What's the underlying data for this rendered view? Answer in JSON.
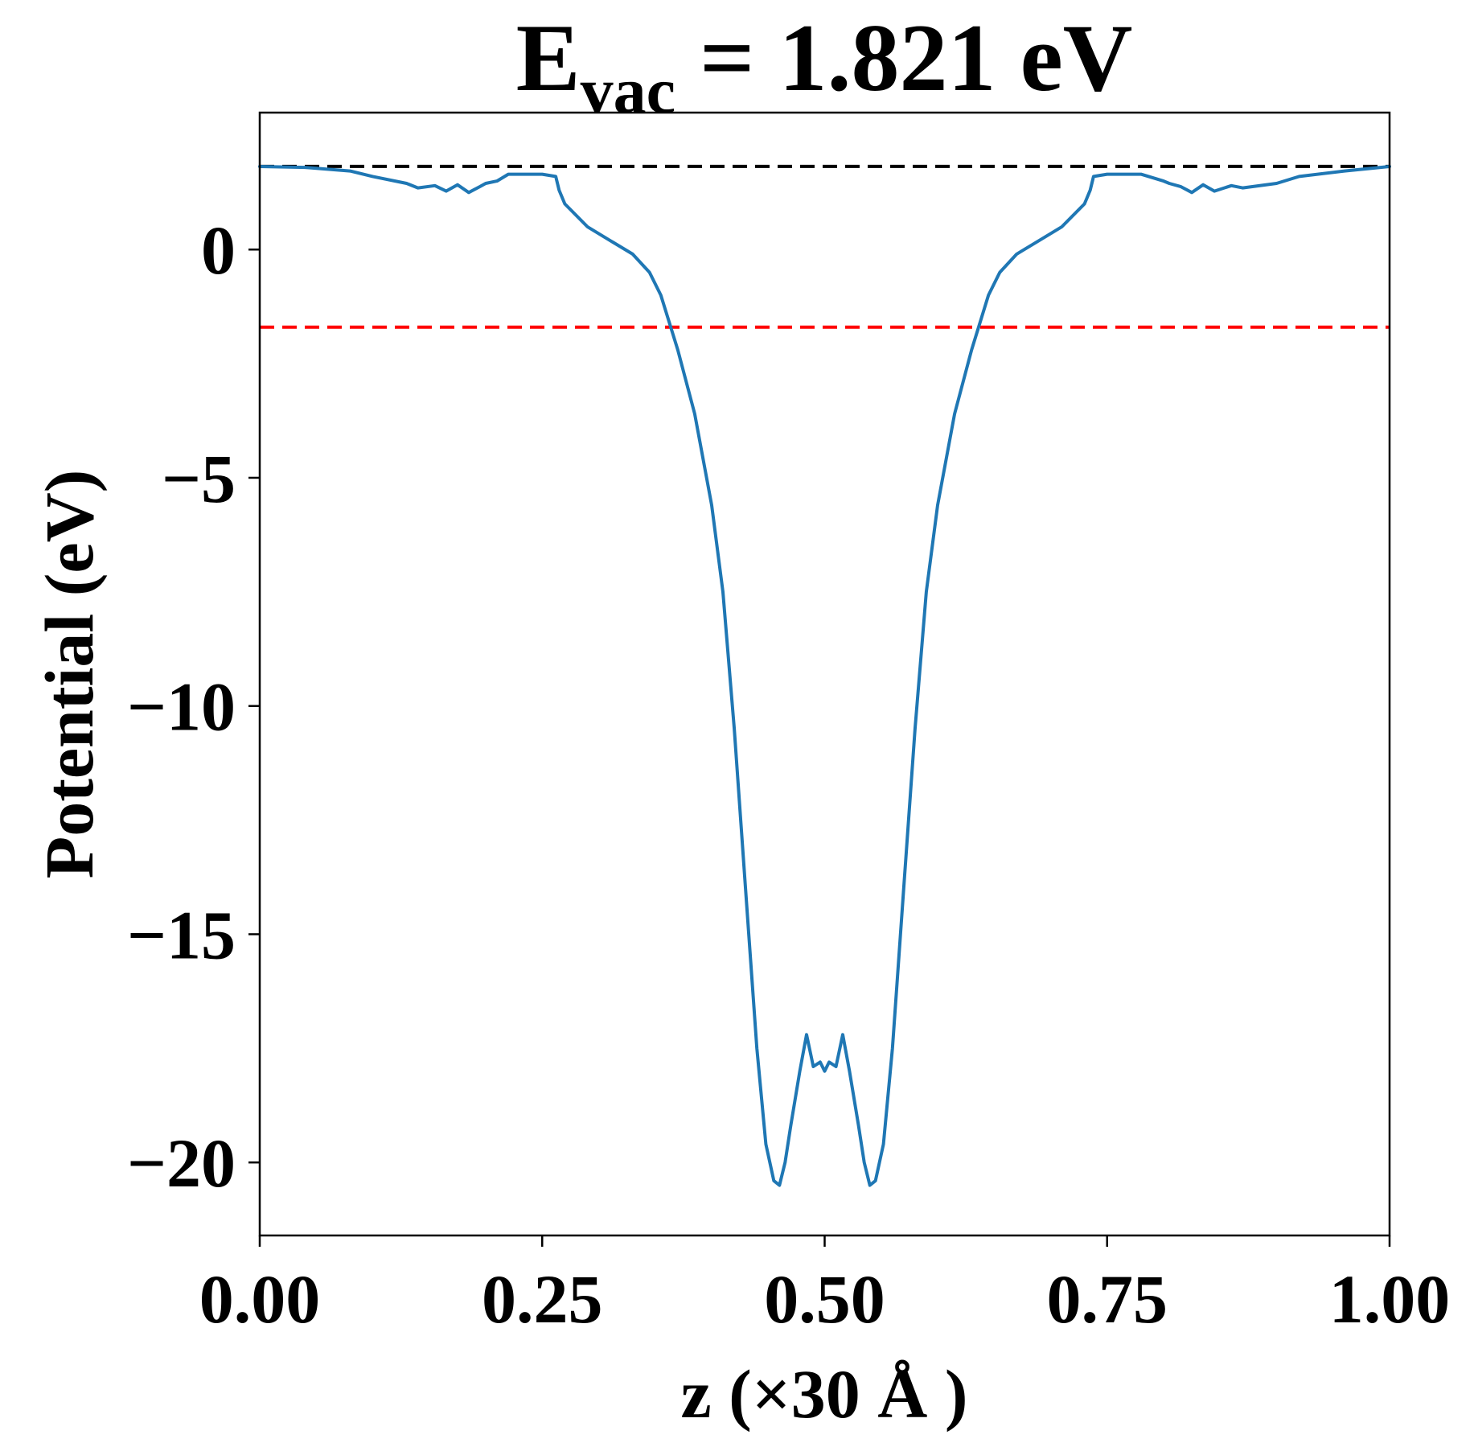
{
  "chart_data": {
    "type": "line",
    "title": {
      "prefix": "E",
      "subscript": "vac",
      "suffix": " = 1.821 eV"
    },
    "xlabel": "z (×30 Å )",
    "ylabel": "Potential (eV)",
    "xlim": [
      0.0,
      1.0
    ],
    "ylim": [
      -21.6,
      3.0
    ],
    "x_ticks": [
      0.0,
      0.25,
      0.5,
      0.75,
      1.0
    ],
    "x_tick_labels": [
      "0.00",
      "0.25",
      "0.50",
      "0.75",
      "1.00"
    ],
    "y_ticks": [
      0,
      -5,
      -10,
      -15,
      -20
    ],
    "y_tick_labels": [
      "0",
      "−5",
      "−10",
      "−15",
      "−20"
    ],
    "grid": false,
    "reference_lines": [
      {
        "y": 1.821,
        "style": "dashed",
        "color": "#000000"
      },
      {
        "y": -1.7,
        "style": "dashed",
        "color": "#ff0000"
      }
    ],
    "series": [
      {
        "color": "#1f77b4",
        "x": [
          0.0,
          0.04,
          0.08,
          0.1,
          0.13,
          0.14,
          0.155,
          0.165,
          0.175,
          0.185,
          0.195,
          0.2,
          0.21,
          0.22,
          0.25,
          0.262,
          0.265,
          0.27,
          0.29,
          0.31,
          0.33,
          0.345,
          0.355,
          0.37,
          0.385,
          0.4,
          0.41,
          0.42,
          0.43,
          0.44,
          0.448,
          0.455,
          0.46,
          0.465,
          0.47,
          0.478,
          0.484,
          0.49,
          0.496,
          0.5,
          0.504,
          0.51,
          0.516,
          0.522,
          0.53,
          0.535,
          0.54,
          0.545,
          0.552,
          0.56,
          0.57,
          0.58,
          0.59,
          0.6,
          0.615,
          0.63,
          0.645,
          0.655,
          0.67,
          0.69,
          0.71,
          0.73,
          0.735,
          0.738,
          0.75,
          0.78,
          0.8,
          0.805,
          0.815,
          0.825,
          0.835,
          0.845,
          0.86,
          0.87,
          0.9,
          0.92,
          0.96,
          1.0
        ],
        "y": [
          1.82,
          1.8,
          1.72,
          1.6,
          1.45,
          1.35,
          1.4,
          1.28,
          1.42,
          1.25,
          1.38,
          1.45,
          1.5,
          1.65,
          1.65,
          1.6,
          1.3,
          1.0,
          0.5,
          0.2,
          -0.1,
          -0.5,
          -1.0,
          -2.2,
          -3.6,
          -5.6,
          -7.5,
          -10.5,
          -14.0,
          -17.5,
          -19.6,
          -20.4,
          -20.5,
          -20.0,
          -19.2,
          -18.0,
          -17.2,
          -17.9,
          -17.8,
          -18.0,
          -17.8,
          -17.9,
          -17.2,
          -18.0,
          -19.2,
          -20.0,
          -20.5,
          -20.4,
          -19.6,
          -17.5,
          -14.0,
          -10.5,
          -7.5,
          -5.6,
          -3.6,
          -2.2,
          -1.0,
          -0.5,
          -0.1,
          0.2,
          0.5,
          1.0,
          1.3,
          1.6,
          1.65,
          1.65,
          1.5,
          1.45,
          1.38,
          1.25,
          1.42,
          1.28,
          1.4,
          1.35,
          1.45,
          1.6,
          1.72,
          1.82
        ]
      }
    ]
  }
}
